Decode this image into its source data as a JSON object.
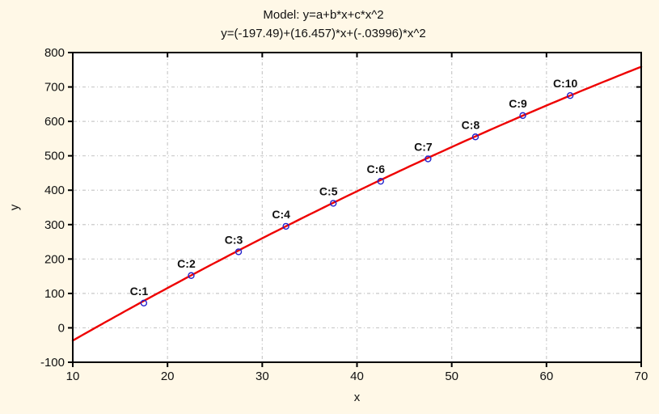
{
  "titles": {
    "model_line": "Model: y=a+b*x+c*x^2",
    "equation_line": "y=(-197.49)+(16.457)*x+(-.03996)*x^2"
  },
  "colors": {
    "window_background": "#FFF8E7",
    "plot_background": "#FFFFFF",
    "frame": "#000000",
    "grid": "#C9C9C9",
    "curve": "#EE0000",
    "point": "#2222CC",
    "text": "#111111"
  },
  "chart_data": {
    "type": "scatter",
    "title": "Model: y=a+b*x+c*x^2",
    "subtitle": "y=(-197.49)+(16.457)*x+(-.03996)*x^2",
    "xlabel": "x",
    "ylabel": "y",
    "xlim": [
      10,
      70
    ],
    "ylim": [
      -100,
      800
    ],
    "x_ticks": [
      10,
      20,
      30,
      40,
      50,
      60,
      70
    ],
    "y_ticks": [
      -100,
      0,
      100,
      200,
      300,
      400,
      500,
      600,
      700,
      800
    ],
    "grid": "dashed gray lines at interior major ticks, both axes",
    "legend_position": "none",
    "points": [
      {
        "label": "C:1",
        "x": 17.5,
        "y": 72
      },
      {
        "label": "C:2",
        "x": 22.5,
        "y": 152
      },
      {
        "label": "C:3",
        "x": 27.5,
        "y": 221
      },
      {
        "label": "C:4",
        "x": 32.5,
        "y": 295
      },
      {
        "label": "C:5",
        "x": 37.5,
        "y": 362
      },
      {
        "label": "C:6",
        "x": 42.5,
        "y": 426
      },
      {
        "label": "C:7",
        "x": 47.5,
        "y": 491
      },
      {
        "label": "C:8",
        "x": 52.5,
        "y": 555
      },
      {
        "label": "C:9",
        "x": 57.5,
        "y": 617
      },
      {
        "label": "C:10",
        "x": 62.5,
        "y": 675
      }
    ],
    "fit_curve": {
      "model": "y = a + b*x + c*x^2",
      "a": -197.49,
      "b": 16.457,
      "c": -0.03996,
      "x_start": 10,
      "x_end": 70
    }
  }
}
